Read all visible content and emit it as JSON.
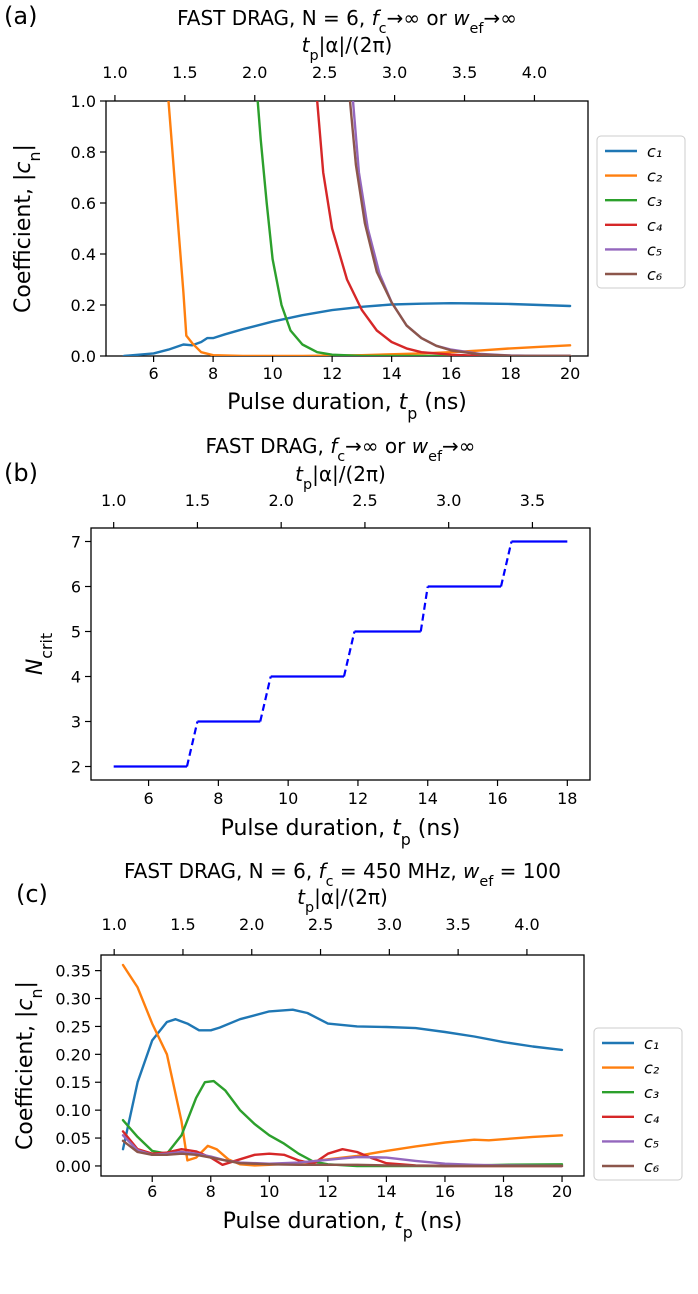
{
  "panels": {
    "a": {
      "label": "(a)",
      "title": "FAST DRAG, N = 6,  f_c→∞ or w_ef→∞"
    },
    "b": {
      "label": "(b)",
      "title": "FAST DRAG, f_c→∞ or w_ef→∞"
    },
    "c": {
      "label": "(c)",
      "title": "FAST DRAG, N = 6, f_c = 450 MHz, w_ef = 100"
    }
  },
  "chart_data": [
    {
      "type": "line",
      "title": "FAST DRAG, N = 6,  f_c→∞ or w_ef→∞",
      "xlabel": "Pulse duration, t_p (ns)",
      "ylabel": "Coefficient, |c_n|",
      "top_xlabel": "t_p|α|/(2π)",
      "xlim": [
        4.4,
        20.6
      ],
      "ylim": [
        0,
        1.0
      ],
      "xticks": [
        6,
        8,
        10,
        12,
        14,
        16,
        18,
        20
      ],
      "yticks": [
        0.0,
        0.2,
        0.4,
        0.6,
        0.8,
        1.0
      ],
      "top_xticks": [
        1.0,
        1.5,
        2.0,
        2.5,
        3.0,
        3.5,
        4.0
      ],
      "top_xtick_positions_ns": [
        4.7,
        7.05,
        9.4,
        11.75,
        14.1,
        16.45,
        18.8
      ],
      "legend": "outside-right",
      "grid": false,
      "series": [
        {
          "name": "c₁",
          "color": "#1f77b4",
          "x": [
            5,
            6,
            6.5,
            7,
            7.3,
            7.6,
            7.8,
            8,
            8.4,
            9,
            10,
            11,
            12,
            13,
            14,
            15,
            16,
            17,
            18,
            19,
            20
          ],
          "y": [
            0,
            0.01,
            0.025,
            0.045,
            0.042,
            0.055,
            0.07,
            0.07,
            0.085,
            0.105,
            0.135,
            0.16,
            0.18,
            0.193,
            0.202,
            0.205,
            0.207,
            0.206,
            0.204,
            0.2,
            0.196
          ]
        },
        {
          "name": "c₂",
          "color": "#ff7f0e",
          "x": [
            6.5,
            6.6,
            6.8,
            7,
            7.1,
            7.3,
            7.6,
            8,
            9,
            11,
            13,
            15,
            16,
            17,
            18,
            19,
            20
          ],
          "y": [
            1.0,
            0.85,
            0.55,
            0.25,
            0.08,
            0.05,
            0.015,
            0.003,
            0,
            0,
            0.003,
            0.01,
            0.015,
            0.022,
            0.03,
            0.036,
            0.042
          ]
        },
        {
          "name": "c₃",
          "color": "#2ca02c",
          "x": [
            9.5,
            9.6,
            9.8,
            10,
            10.3,
            10.6,
            11,
            11.5,
            12,
            13,
            14,
            16,
            18,
            20
          ],
          "y": [
            1.0,
            0.85,
            0.6,
            0.38,
            0.2,
            0.1,
            0.045,
            0.015,
            0.005,
            0,
            0,
            0,
            0,
            0
          ]
        },
        {
          "name": "c₄",
          "color": "#d62728",
          "x": [
            11.5,
            11.7,
            12,
            12.5,
            13,
            13.5,
            14,
            14.5,
            15,
            16,
            17,
            18,
            20
          ],
          "y": [
            1.0,
            0.72,
            0.5,
            0.3,
            0.18,
            0.1,
            0.055,
            0.03,
            0.015,
            0.005,
            0,
            0,
            0
          ]
        },
        {
          "name": "c₅",
          "color": "#9467bd",
          "x": [
            12.7,
            12.9,
            13.2,
            13.6,
            14,
            14.5,
            15,
            15.5,
            16,
            17,
            18,
            19,
            20
          ],
          "y": [
            1.0,
            0.72,
            0.5,
            0.32,
            0.21,
            0.12,
            0.07,
            0.04,
            0.025,
            0.008,
            0.002,
            0,
            0
          ]
        },
        {
          "name": "c₆",
          "color": "#8c564b",
          "x": [
            12.6,
            12.8,
            13.1,
            13.5,
            14,
            14.5,
            15,
            15.5,
            16,
            17,
            18,
            19,
            20
          ],
          "y": [
            1.0,
            0.75,
            0.52,
            0.33,
            0.21,
            0.12,
            0.07,
            0.04,
            0.022,
            0.006,
            0.001,
            0,
            0
          ]
        }
      ]
    },
    {
      "type": "line",
      "title": "FAST DRAG, f_c→∞ or w_ef→∞",
      "xlabel": "Pulse duration, t_p (ns)",
      "ylabel": "N_crit",
      "top_xlabel": "t_p|α|/(2π)",
      "xlim": [
        4.35,
        18.65
      ],
      "ylim": [
        1.7,
        7.3
      ],
      "xticks": [
        6,
        8,
        10,
        12,
        14,
        16,
        18
      ],
      "yticks": [
        2,
        3,
        4,
        5,
        6,
        7
      ],
      "top_xticks": [
        1.0,
        1.5,
        2.0,
        2.5,
        3.0,
        3.5
      ],
      "top_xtick_positions_ns": [
        5.0,
        7.4,
        9.8,
        12.2,
        14.6,
        17.0
      ],
      "grid": false,
      "series": [
        {
          "name": "",
          "color": "#0000ff",
          "style": "steps",
          "steps": [
            {
              "from": 5.0,
              "to": 7.1,
              "y": 2
            },
            {
              "from": 7.4,
              "to": 9.2,
              "y": 3
            },
            {
              "from": 9.5,
              "to": 11.6,
              "y": 4
            },
            {
              "from": 11.9,
              "to": 13.8,
              "y": 5
            },
            {
              "from": 14.0,
              "to": 16.1,
              "y": 6
            },
            {
              "from": 16.4,
              "to": 18.0,
              "y": 7
            }
          ]
        }
      ]
    },
    {
      "type": "line",
      "title": "FAST DRAG, N = 6, f_c = 450 MHz, w_ef = 100",
      "xlabel": "Pulse duration, t_p (ns)",
      "ylabel": "Coefficient, |c_n|",
      "top_xlabel": "t_p|α|/(2π)",
      "xlim": [
        4.25,
        20.75
      ],
      "ylim": [
        -0.018,
        0.378
      ],
      "xticks": [
        6,
        8,
        10,
        12,
        14,
        16,
        18,
        20
      ],
      "yticks": [
        0.0,
        0.05,
        0.1,
        0.15,
        0.2,
        0.25,
        0.3,
        0.35
      ],
      "top_xticks": [
        1.0,
        1.5,
        2.0,
        2.5,
        3.0,
        3.5,
        4.0
      ],
      "top_xtick_positions_ns": [
        4.7,
        7.05,
        9.4,
        11.75,
        14.1,
        16.45,
        18.8
      ],
      "legend": "outside-right",
      "grid": false,
      "series": [
        {
          "name": "c₁",
          "color": "#1f77b4",
          "x": [
            5,
            5.5,
            6,
            6.5,
            6.8,
            7.2,
            7.6,
            8,
            8.3,
            9,
            10,
            10.8,
            11.3,
            12,
            13,
            14,
            15,
            16,
            17,
            18,
            19,
            20
          ],
          "y": [
            0.03,
            0.15,
            0.225,
            0.258,
            0.263,
            0.255,
            0.243,
            0.243,
            0.248,
            0.263,
            0.277,
            0.28,
            0.274,
            0.255,
            0.25,
            0.249,
            0.247,
            0.24,
            0.232,
            0.222,
            0.214,
            0.208
          ]
        },
        {
          "name": "c₂",
          "color": "#ff7f0e",
          "x": [
            5,
            5.5,
            6,
            6.5,
            7,
            7.2,
            7.5,
            7.9,
            8.2,
            8.6,
            9,
            9.5,
            10,
            11,
            12,
            13,
            14,
            15,
            16,
            17,
            17.5,
            18,
            19,
            20
          ],
          "y": [
            0.36,
            0.32,
            0.255,
            0.2,
            0.08,
            0.01,
            0.015,
            0.036,
            0.03,
            0.012,
            0.003,
            0.001,
            0.002,
            0.005,
            0.012,
            0.018,
            0.027,
            0.035,
            0.042,
            0.047,
            0.046,
            0.048,
            0.052,
            0.055
          ]
        },
        {
          "name": "c₃",
          "color": "#2ca02c",
          "x": [
            5,
            5.5,
            6,
            6.5,
            7,
            7.5,
            7.8,
            8.1,
            8.5,
            9,
            9.5,
            10,
            10.5,
            11,
            11.5,
            12,
            13,
            14,
            16,
            18,
            20
          ],
          "y": [
            0.082,
            0.052,
            0.027,
            0.022,
            0.055,
            0.122,
            0.15,
            0.152,
            0.135,
            0.1,
            0.075,
            0.055,
            0.04,
            0.022,
            0.008,
            0.003,
            0,
            0,
            0,
            0.002,
            0.003
          ]
        },
        {
          "name": "c₄",
          "color": "#d62728",
          "x": [
            5,
            5.5,
            6,
            6.5,
            7,
            7.5,
            8,
            8.4,
            9,
            9.5,
            10,
            10.5,
            11,
            11.5,
            12,
            12.5,
            13,
            13.5,
            14,
            15,
            16,
            18,
            20
          ],
          "y": [
            0.062,
            0.03,
            0.022,
            0.024,
            0.03,
            0.026,
            0.015,
            0.002,
            0.012,
            0.02,
            0.022,
            0.02,
            0.01,
            0.004,
            0.022,
            0.03,
            0.025,
            0.014,
            0.005,
            0.001,
            0,
            0,
            0
          ]
        },
        {
          "name": "c₅",
          "color": "#9467bd",
          "x": [
            5,
            5.5,
            6,
            6.5,
            7,
            7.5,
            8,
            8.5,
            9,
            10,
            11,
            12,
            13,
            14,
            15,
            16,
            17,
            18,
            20
          ],
          "y": [
            0.055,
            0.028,
            0.02,
            0.022,
            0.025,
            0.022,
            0.017,
            0.01,
            0.006,
            0.004,
            0.006,
            0.011,
            0.016,
            0.015,
            0.009,
            0.004,
            0.002,
            0.001,
            0
          ]
        },
        {
          "name": "c₆",
          "color": "#8c564b",
          "x": [
            5,
            5.5,
            6,
            6.5,
            7,
            7.5,
            8,
            8.5,
            9,
            10,
            11,
            12,
            13,
            14,
            16,
            18,
            20
          ],
          "y": [
            0.045,
            0.025,
            0.02,
            0.02,
            0.022,
            0.02,
            0.015,
            0.01,
            0.005,
            0.003,
            0.002,
            0.002,
            0.002,
            0.001,
            0,
            0,
            0
          ]
        }
      ]
    }
  ]
}
